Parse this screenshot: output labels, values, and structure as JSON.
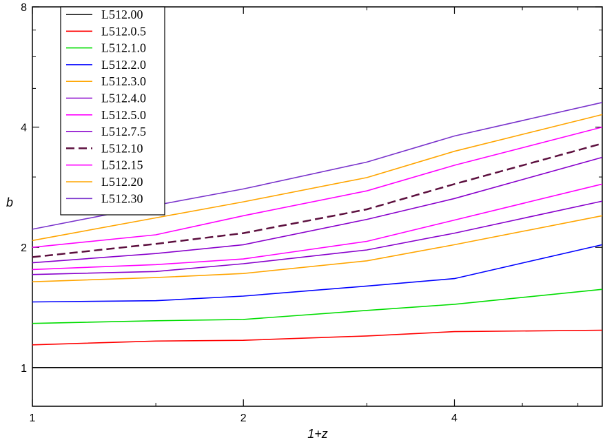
{
  "chart_data": {
    "type": "line",
    "title": "",
    "xlabel": "1+z",
    "ylabel": "b",
    "xscale": "log",
    "yscale": "log",
    "xlim": [
      1,
      6.5
    ],
    "ylim": [
      0.8,
      8
    ],
    "xticks": [
      1,
      2,
      4
    ],
    "xtick_labels": [
      "1",
      "2",
      "4"
    ],
    "yticks": [
      1,
      2,
      4,
      8
    ],
    "ytick_labels": [
      "1",
      "2",
      "4",
      "8"
    ],
    "grid": false,
    "legend_position": "top-left",
    "x": [
      1,
      1.5,
      2,
      3,
      4,
      6.5
    ],
    "series": [
      {
        "name": "L512.00",
        "color": "#000000",
        "dash": "solid",
        "values": [
          1.0,
          1.0,
          1.0,
          1.0,
          1.0,
          1.0
        ]
      },
      {
        "name": "L512.0.5",
        "color": "#ff0000",
        "dash": "solid",
        "values": [
          1.14,
          1.165,
          1.17,
          1.2,
          1.23,
          1.24
        ]
      },
      {
        "name": "L512.1.0",
        "color": "#00dd00",
        "dash": "solid",
        "values": [
          1.29,
          1.31,
          1.32,
          1.39,
          1.44,
          1.57
        ]
      },
      {
        "name": "L512.2.0",
        "color": "#0000ff",
        "dash": "solid",
        "values": [
          1.46,
          1.47,
          1.51,
          1.6,
          1.67,
          2.03
        ]
      },
      {
        "name": "L512.3.0",
        "color": "#ffa500",
        "dash": "solid",
        "values": [
          1.64,
          1.68,
          1.72,
          1.85,
          2.03,
          2.4
        ]
      },
      {
        "name": "L512.4.0",
        "color": "#8800cc",
        "dash": "solid",
        "values": [
          1.71,
          1.74,
          1.82,
          1.97,
          2.17,
          2.61
        ]
      },
      {
        "name": "L512.5.0",
        "color": "#ff00ff",
        "dash": "solid",
        "values": [
          1.76,
          1.81,
          1.87,
          2.07,
          2.34,
          2.88
        ]
      },
      {
        "name": "L512.7.5",
        "color": "#8800cc",
        "dash": "solid",
        "values": [
          1.83,
          1.93,
          2.03,
          2.35,
          2.65,
          3.36
        ]
      },
      {
        "name": "L512.10",
        "color": "#5c0f3e",
        "dash": "dashed",
        "values": [
          1.89,
          2.04,
          2.17,
          2.49,
          2.88,
          3.64
        ]
      },
      {
        "name": "L512.15",
        "color": "#ff00ff",
        "dash": "solid",
        "values": [
          2.0,
          2.15,
          2.4,
          2.77,
          3.21,
          4.0
        ]
      },
      {
        "name": "L512.20",
        "color": "#ffa500",
        "dash": "solid",
        "values": [
          2.08,
          2.37,
          2.6,
          2.99,
          3.48,
          4.3
        ]
      },
      {
        "name": "L512.30",
        "color": "#7a33cc",
        "dash": "solid",
        "values": [
          2.22,
          2.55,
          2.8,
          3.27,
          3.8,
          4.61
        ]
      }
    ]
  }
}
